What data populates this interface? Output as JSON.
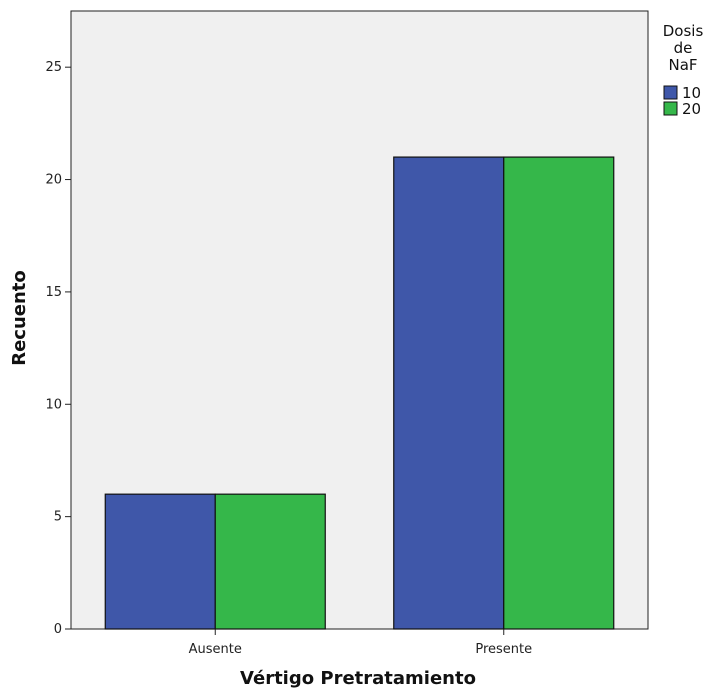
{
  "chart_data": {
    "type": "bar",
    "categories": [
      "Ausente",
      "Presente"
    ],
    "series": [
      {
        "name": "10",
        "values": [
          6,
          21
        ]
      },
      {
        "name": "20",
        "values": [
          6,
          21
        ]
      }
    ],
    "xlabel": "Vértigo Pretratamiento",
    "ylabel": "Recuento",
    "ylim": [
      0,
      27.5
    ],
    "yticks": [
      0,
      5,
      10,
      15,
      20,
      25
    ],
    "legend": {
      "title_lines": [
        "Dosis",
        "de",
        "NaF"
      ],
      "placement": "right",
      "colors": [
        "#3f57a9",
        "#35b74a"
      ]
    },
    "plot_background": "#f0f0f0",
    "grid": false
  }
}
